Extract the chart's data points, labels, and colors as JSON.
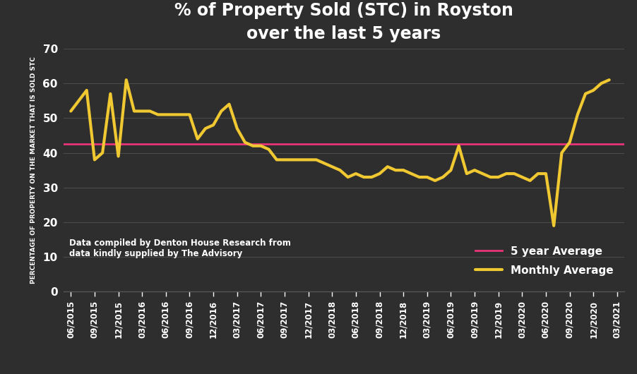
{
  "title_line1": "% of Property Sold (STC) in Royston",
  "title_line2": "over the last 5 years",
  "ylabel": "PERCENTAGE OF PROPERTY ON THE MARKET THAT IS SOLD STC",
  "avg_value": 42.5,
  "avg_label": "5 year Average",
  "line_label": "Monthly Average",
  "annotation_line1": "Data compiled by Denton House Research from",
  "annotation_line2": "data kindly supplied by The Advisory",
  "background_color": "#2e2e2e",
  "line_color": "#f0c832",
  "avg_color": "#e8357a",
  "text_color": "#ffffff",
  "grid_color": "#4a4a4a",
  "ylim": [
    0,
    70
  ],
  "yticks": [
    0,
    10,
    20,
    30,
    40,
    50,
    60,
    70
  ],
  "x_labels": [
    "06/2015",
    "09/2015",
    "12/2015",
    "03/2016",
    "06/2016",
    "09/2016",
    "12/2016",
    "03/2017",
    "06/2017",
    "09/2017",
    "12/2017",
    "03/2018",
    "06/2018",
    "09/2018",
    "12/2018",
    "03/2019",
    "06/2019",
    "09/2019",
    "12/2019",
    "03/2020",
    "06/2020",
    "09/2020",
    "12/2020",
    "03/2021"
  ],
  "monthly_data": [
    52,
    55,
    58,
    38,
    40,
    57,
    39,
    61,
    52,
    52,
    52,
    51,
    51,
    51,
    51,
    51,
    44,
    47,
    48,
    52,
    54,
    47,
    43,
    42,
    42,
    41,
    38,
    38,
    38,
    38,
    38,
    38,
    37,
    36,
    35,
    33,
    34,
    33,
    33,
    34,
    36,
    35,
    35,
    34,
    33,
    33,
    32,
    33,
    35,
    42,
    34,
    35,
    34,
    33,
    33,
    34,
    34,
    33,
    32,
    34,
    34,
    19,
    40,
    43,
    51,
    57,
    58,
    60,
    61
  ]
}
